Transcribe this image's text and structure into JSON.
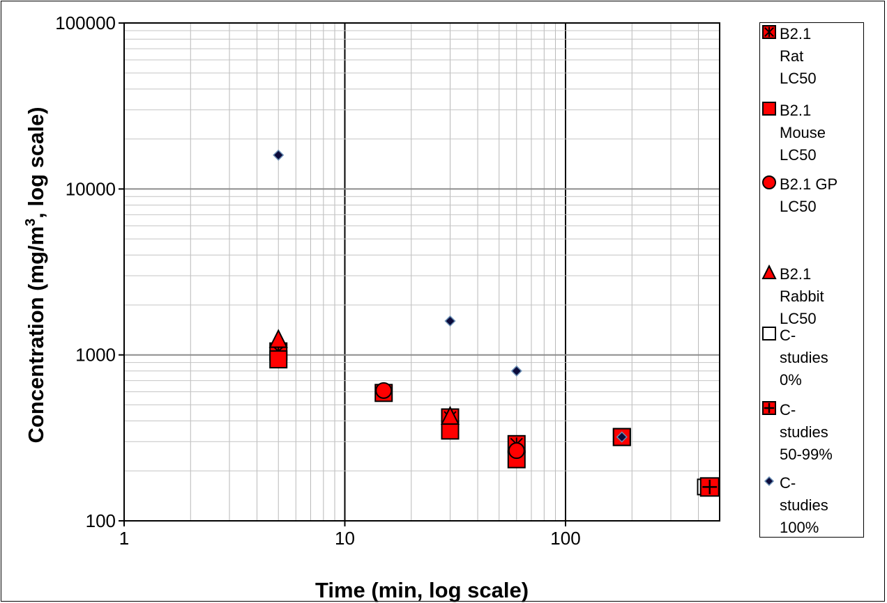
{
  "chart_data": {
    "type": "scatter",
    "xlabel": "Time (min, log scale)",
    "ylabel": "Concentration (mg/m3, log scale)",
    "ylabel_main": "Concentration (mg/m",
    "ylabel_sup": "3",
    "ylabel_tail": ", log scale)",
    "x_scale": "log",
    "y_scale": "log",
    "xlim": [
      1,
      450
    ],
    "ylim": [
      100,
      100000
    ],
    "x_ticks": [
      "1",
      "10",
      "100"
    ],
    "y_ticks": [
      "100",
      "1000",
      "10000",
      "100000"
    ],
    "grid": true,
    "legend_position": "right",
    "series": [
      {
        "name": "B2.1 Rat LC50",
        "marker": "x-square",
        "color": "#ff0000",
        "points": [
          [
            5,
            1050
          ],
          [
            30,
            420
          ],
          [
            60,
            290
          ],
          [
            180,
            320
          ]
        ]
      },
      {
        "name": "B2.1 Mouse LC50",
        "marker": "square",
        "color": "#ff0000",
        "points": [
          [
            5,
            940
          ],
          [
            15,
            590
          ],
          [
            30,
            350
          ],
          [
            60,
            235
          ],
          [
            180,
            320
          ],
          [
            450,
            160
          ]
        ]
      },
      {
        "name": "B2.1 GP LC50",
        "marker": "circle",
        "color": "#ff0000",
        "points": [
          [
            15,
            610
          ],
          [
            60,
            265
          ]
        ]
      },
      {
        "name": "B2.1 Rabbit LC50",
        "marker": "triangle",
        "color": "#ff0000",
        "points": [
          [
            5,
            1250
          ],
          [
            30,
            430
          ]
        ]
      },
      {
        "name": "C-studies 0%",
        "marker": "open-square",
        "color": "#ffffff",
        "points": [
          [
            430,
            160
          ]
        ]
      },
      {
        "name": "C-studies 50-99%",
        "marker": "plus-square",
        "color": "#ff0000",
        "points": [
          [
            450,
            160
          ]
        ]
      },
      {
        "name": "C-studies 100%",
        "marker": "diamond",
        "color": "#0b0b3b",
        "points": [
          [
            5,
            16000
          ],
          [
            30,
            1600
          ],
          [
            60,
            800
          ],
          [
            180,
            320
          ]
        ]
      }
    ]
  },
  "legend": {
    "items": [
      {
        "lines": [
          "B2.1",
          "Rat",
          "LC50"
        ]
      },
      {
        "lines": [
          "B2.1",
          "Mouse",
          "LC50"
        ]
      },
      {
        "lines": [
          "B2.1 GP",
          "LC50"
        ]
      },
      {
        "lines": [
          "B2.1",
          "Rabbit",
          "LC50"
        ]
      },
      {
        "lines": [
          "C-",
          "studies",
          "0%"
        ]
      },
      {
        "lines": [
          "C-",
          "studies",
          "50-99%"
        ]
      },
      {
        "lines": [
          "C-",
          "studies",
          "100%"
        ]
      }
    ]
  }
}
